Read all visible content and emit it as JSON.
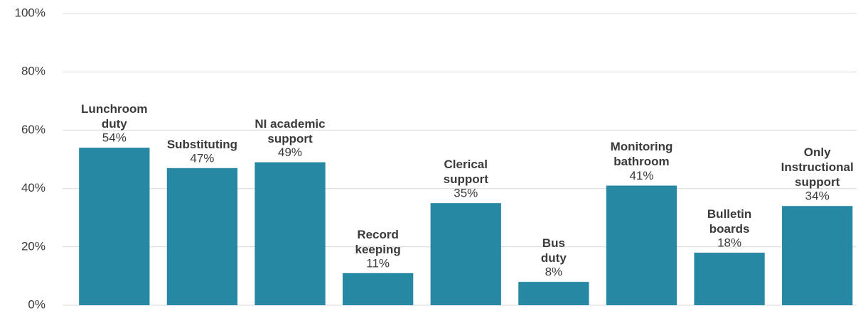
{
  "chart_data": {
    "type": "bar",
    "categories": [
      "Lunchroom\nduty",
      "Substituting",
      "NI academic\nsupport",
      "Record\nkeeping",
      "Clerical\nsupport",
      "Bus\nduty",
      "Monitoring\nbathroom",
      "Bulletin\nboards",
      "Only\nInstructional\nsupport"
    ],
    "values": [
      54,
      47,
      49,
      11,
      35,
      8,
      41,
      18,
      34
    ],
    "value_labels": [
      "54%",
      "47%",
      "49%",
      "11%",
      "35%",
      "8%",
      "41%",
      "18%",
      "34%"
    ],
    "color": "#2788a4",
    "ylim": [
      0,
      100
    ],
    "yticks": [
      {
        "value": 0,
        "label": "0%"
      },
      {
        "value": 20,
        "label": "20%"
      },
      {
        "value": 40,
        "label": "40%"
      },
      {
        "value": 60,
        "label": "60%"
      },
      {
        "value": 80,
        "label": "80%"
      },
      {
        "value": 100,
        "label": "100%"
      }
    ],
    "grid": true
  }
}
